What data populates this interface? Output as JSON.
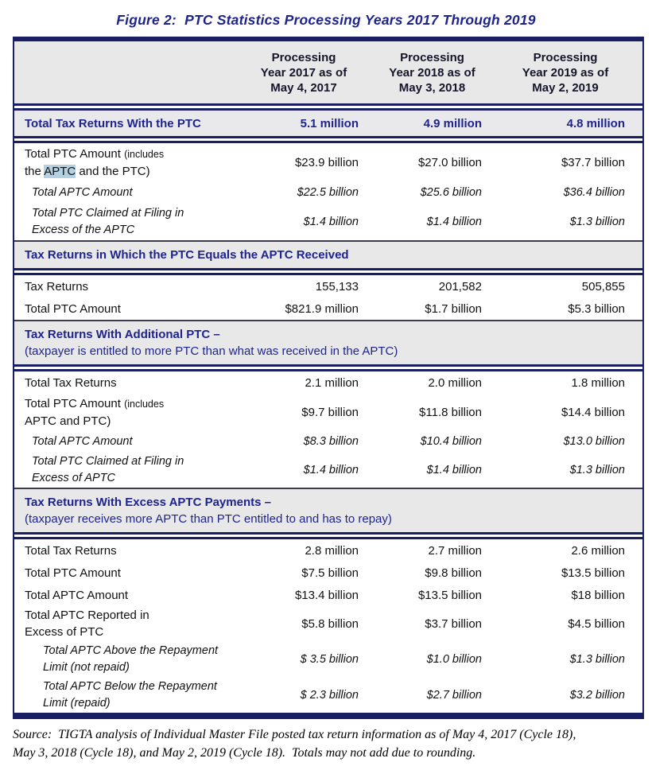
{
  "figure_title": "Figure 2:  PTC Statistics Processing Years 2017 Through 2019",
  "colors": {
    "navy_text": "#1e248c",
    "border_navy": "#1a1f63",
    "header_text": "#15152a",
    "section_bg": "#e8e8e9",
    "total_row_bg": "#e9e9ec",
    "aptc_highlight": "#b5d0e2"
  },
  "table": {
    "columns": [
      "Processing\nYear 2017 as of\nMay 4, 2017",
      "Processing\nYear 2018 as of\nMay 3, 2018",
      "Processing\nYear 2019 as of\nMay 2, 2019"
    ],
    "total_row": {
      "label": "Total Tax Returns With the PTC",
      "values": [
        "5.1 million",
        "4.9 million",
        "4.8 million"
      ]
    },
    "section_a": {
      "ptc_amount": {
        "label_main": "Total PTC Amount",
        "label_paren": "(includes",
        "line2_pre": "the ",
        "line2_highlight": "APTC",
        "line2_post": " and the PTC)",
        "values": [
          "$23.9 billion",
          "$27.0 billion",
          "$37.7 billion"
        ]
      },
      "aptc_amount": {
        "label": "Total APTC Amount",
        "values": [
          "$22.5 billion",
          "$25.6 billion",
          "$36.4 billion"
        ]
      },
      "ptc_excess": {
        "line1": "Total PTC Claimed at Filing in",
        "line2": "Excess of the APTC",
        "values": [
          "$1.4 billion",
          "$1.4 billion",
          "$1.3 billion"
        ]
      }
    },
    "section_b": {
      "header": "Tax Returns in Which the PTC Equals the APTC Received",
      "tax_returns": {
        "label": "Tax Returns",
        "values": [
          "155,133",
          "201,582",
          "505,855"
        ]
      },
      "ptc_amount": {
        "label": "Total PTC Amount",
        "values": [
          "$821.9 million",
          "$1.7 billion",
          "$5.3 billion"
        ]
      }
    },
    "section_c": {
      "header_line1": "Tax Returns With Additional PTC –",
      "header_line2": "(taxpayer is entitled to more PTC than what was received in the APTC)",
      "total_tax_returns": {
        "label": "Total Tax Returns",
        "values": [
          "2.1 million",
          "2.0 million",
          "1.8 million"
        ]
      },
      "ptc_amount": {
        "label_main": "Total PTC Amount",
        "label_paren": "(includes",
        "line2": "APTC and PTC)",
        "values": [
          "$9.7 billion",
          "$11.8 billion",
          "$14.4 billion"
        ]
      },
      "aptc_amount": {
        "label": "Total APTC Amount",
        "values": [
          "$8.3 billion",
          "$10.4 billion",
          "$13.0 billion"
        ]
      },
      "ptc_excess": {
        "line1": "Total PTC Claimed at Filing in",
        "line2": "Excess of APTC",
        "values": [
          "$1.4 billion",
          "$1.4 billion",
          "$1.3 billion"
        ]
      }
    },
    "section_d": {
      "header_line1": "Tax Returns With Excess APTC Payments –",
      "header_line2": "(taxpayer receives more APTC than PTC entitled to and has to repay)",
      "total_tax_returns": {
        "label": "Total Tax Returns",
        "values": [
          "2.8 million",
          "2.7 million",
          "2.6 million"
        ]
      },
      "ptc_amount": {
        "label": "Total PTC Amount",
        "values": [
          "$7.5 billion",
          "$9.8 billion",
          "$13.5 billion"
        ]
      },
      "aptc_amount": {
        "label": "Total APTC Amount",
        "values": [
          "$13.4 billion",
          "$13.5 billion",
          "$18 billion"
        ]
      },
      "aptc_excess": {
        "line1": "Total APTC Reported in",
        "line2": "Excess of PTC",
        "values": [
          "$5.8 billion",
          "$3.7 billion",
          "$4.5 billion"
        ]
      },
      "above_limit": {
        "line1": "Total APTC Above the Repayment",
        "line2": "Limit (not repaid)",
        "values": [
          "$ 3.5 billion",
          "$1.0 billion",
          "$1.3 billion"
        ]
      },
      "below_limit": {
        "line1": "Total APTC Below the Repayment",
        "line2": "Limit (repaid)",
        "values": [
          "$ 2.3 billion",
          "$2.7 billion",
          "$3.2 billion"
        ]
      }
    }
  },
  "source_note": "Source:  TIGTA analysis of Individual Master File posted tax return information as of May 4, 2017 (Cycle 18),\nMay 3, 2018 (Cycle 18), and May 2, 2019 (Cycle 18).  Totals may not add due to rounding."
}
